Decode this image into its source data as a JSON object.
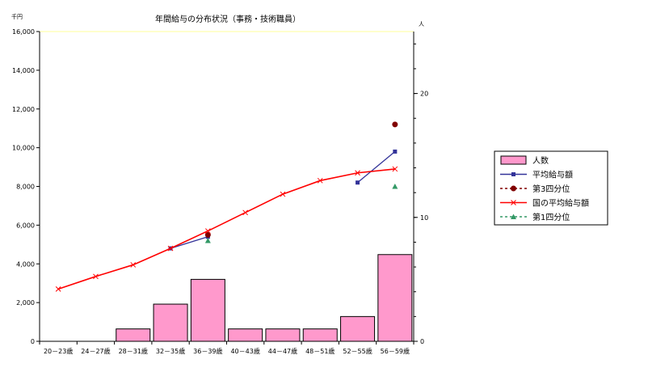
{
  "chart_data": {
    "type": "bar+line",
    "title": "年間給与の分布状況（事務・技術職員）",
    "y_left_unit": "千円",
    "y_right_unit": "人",
    "y_left_ticks": [
      "0",
      "2,000",
      "4,000",
      "6,000",
      "8,000",
      "10,000",
      "12,000",
      "14,000",
      "16,000"
    ],
    "y_right_ticks": [
      "0",
      "10",
      "20"
    ],
    "ylim_left": [
      0,
      16000
    ],
    "ylim_right": [
      0,
      25
    ],
    "categories": [
      "20－23歳",
      "24－27歳",
      "28－31歳",
      "32－35歳",
      "36－39歳",
      "40－43歳",
      "44－47歳",
      "48－51歳",
      "52－55歳",
      "56－59歳"
    ],
    "grid": false,
    "legend_position": "right",
    "series": [
      {
        "name": "人数",
        "type": "bar",
        "axis": "right",
        "color": "#ff99cc",
        "values": [
          0,
          0,
          1,
          3,
          5,
          1,
          1,
          1,
          2,
          7
        ]
      },
      {
        "name": "平均給与額",
        "type": "line",
        "axis": "left",
        "color": "#333399",
        "marker": "square",
        "segments": [
          {
            "x": [
              "32－35歳",
              "36－39歳"
            ],
            "y": [
              4800,
              5400
            ]
          },
          {
            "x": [
              "52－55歳",
              "56－59歳"
            ],
            "y": [
              8200,
              9800
            ]
          }
        ]
      },
      {
        "name": "第3四分位",
        "type": "points",
        "axis": "left",
        "color": "#800000",
        "marker": "circle",
        "points": [
          {
            "x": "36－39歳",
            "y": 5500
          },
          {
            "x": "56－59歳",
            "y": 11200
          }
        ]
      },
      {
        "name": "国の平均給与額",
        "type": "line",
        "axis": "left",
        "color": "#ff0000",
        "marker": "x",
        "values": [
          2700,
          3350,
          3950,
          4800,
          5700,
          6650,
          7600,
          8300,
          8700,
          8900
        ]
      },
      {
        "name": "第1四分位",
        "type": "points",
        "axis": "left",
        "color": "#339966",
        "marker": "triangle",
        "points": [
          {
            "x": "36－39歳",
            "y": 5200
          },
          {
            "x": "56－59歳",
            "y": 8000
          }
        ]
      }
    ]
  }
}
